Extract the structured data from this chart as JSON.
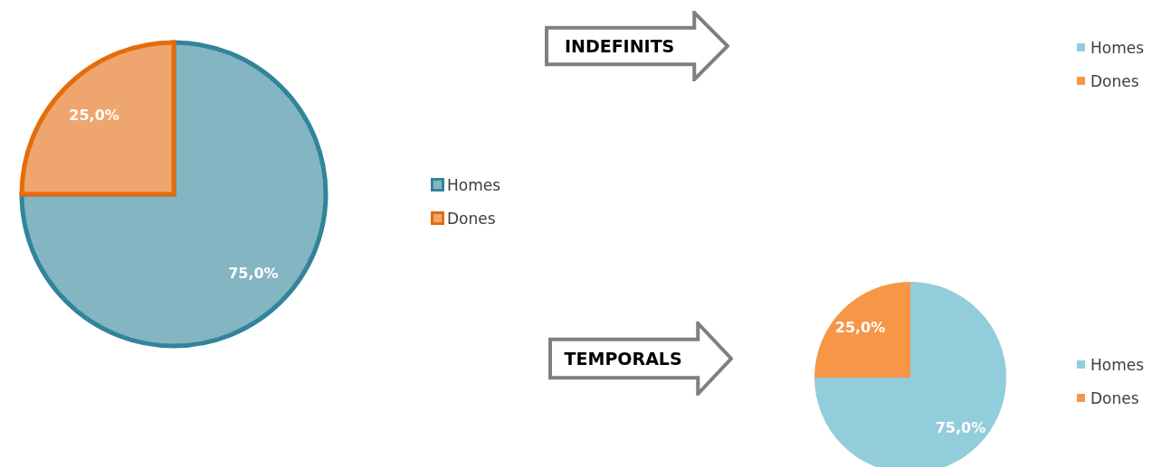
{
  "chart_data": [
    {
      "type": "pie",
      "categories": [
        "Homes",
        "Dones"
      ],
      "values": [
        75,
        25
      ],
      "colors": [
        "#84b5c2",
        "#eea66e"
      ],
      "value_labels": [
        "75,0%",
        "25,0%"
      ],
      "legend": "right"
    },
    {
      "type": "other",
      "title": "INDEFINITS",
      "categories": [
        "Homes",
        "Dones"
      ],
      "colors": [
        "#92cddc",
        "#f79646"
      ]
    },
    {
      "type": "pie",
      "title": "TEMPORALS",
      "categories": [
        "Homes",
        "Dones"
      ],
      "values": [
        75,
        25
      ],
      "colors": [
        "#92cddc",
        "#f79646"
      ],
      "value_labels": [
        "75,0%",
        "25,0%"
      ],
      "legend": "right"
    }
  ]
}
